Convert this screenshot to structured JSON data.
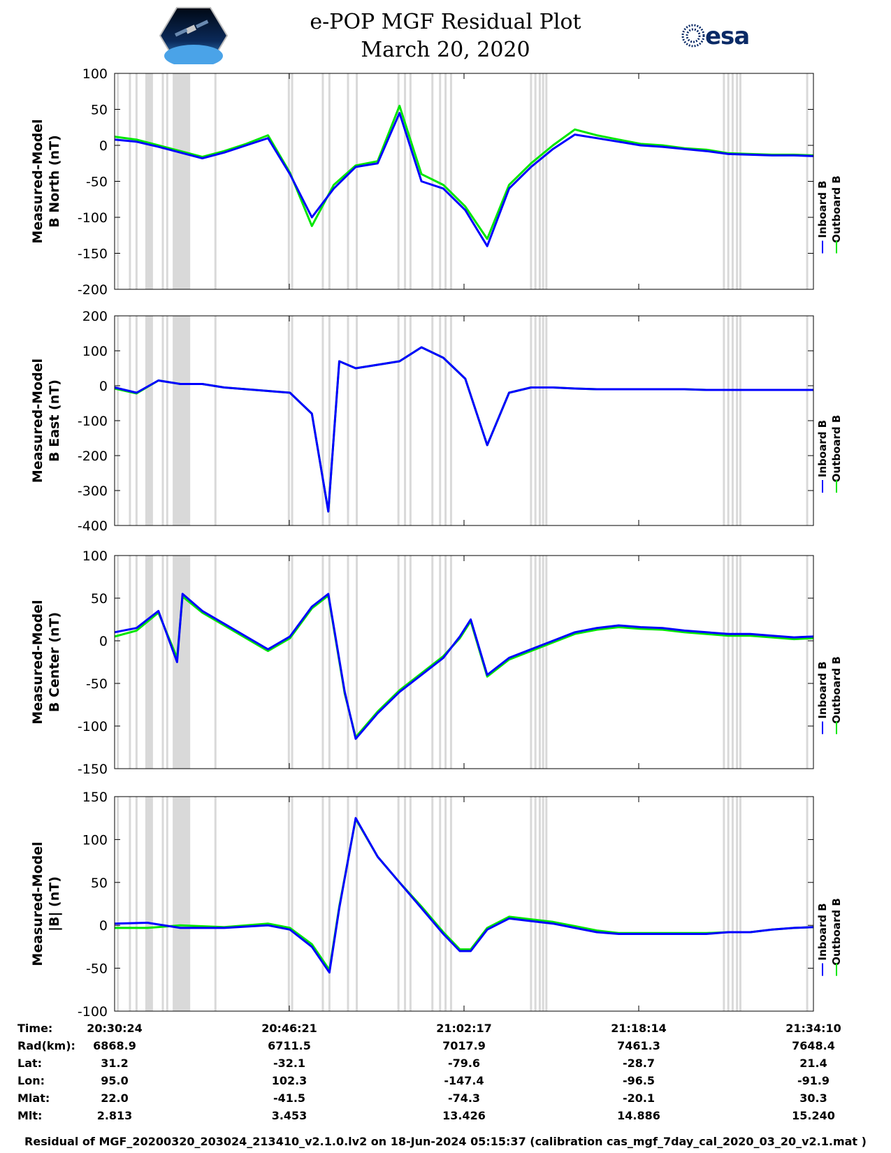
{
  "header": {
    "title": "e-POP MGF Residual Plot",
    "date": "March 20, 2020",
    "left_logo": "cassiope-mission-patch",
    "right_logo": "esa",
    "right_logo_text": "esa"
  },
  "colors": {
    "inboard": "#0000ff",
    "outboard": "#00e600",
    "gap_band": "#d9d9d9"
  },
  "chart_data": [
    {
      "type": "line",
      "panel": "b-north",
      "ylabel_line1": "Measured-Model",
      "ylabel_line2": "B North (nT)",
      "ylim": [
        -200,
        100
      ],
      "yticks": [
        "100",
        "50",
        "0",
        "-50",
        "-100",
        "-150",
        "-200"
      ],
      "legend": [
        "Inboard B",
        "Outboard B"
      ],
      "time_minutes": [
        0,
        2,
        4,
        6,
        8,
        10,
        12,
        14,
        16,
        18,
        20,
        22,
        24,
        26,
        28,
        30,
        32,
        34,
        36,
        38,
        40,
        42,
        44,
        46,
        48,
        50,
        52,
        54,
        56,
        58,
        60,
        62,
        63.77
      ],
      "series": [
        {
          "name": "Inboard B",
          "values": [
            8,
            5,
            -2,
            -10,
            -18,
            -10,
            0,
            10,
            -40,
            -100,
            -60,
            -30,
            -25,
            45,
            -50,
            -60,
            -90,
            -140,
            -60,
            -30,
            -5,
            15,
            10,
            5,
            0,
            -2,
            -5,
            -8,
            -12,
            -13,
            -14,
            -14,
            -15
          ]
        },
        {
          "name": "Outboard B",
          "values": [
            12,
            8,
            0,
            -8,
            -16,
            -8,
            2,
            14,
            -38,
            -112,
            -55,
            -28,
            -22,
            55,
            -40,
            -55,
            -85,
            -130,
            -55,
            -25,
            0,
            22,
            14,
            8,
            2,
            0,
            -4,
            -6,
            -11,
            -12,
            -13,
            -13,
            -14
          ]
        }
      ]
    },
    {
      "type": "line",
      "panel": "b-east",
      "ylabel_line1": "Measured-Model",
      "ylabel_line2": "B East (nT)",
      "ylim": [
        -400,
        200
      ],
      "yticks": [
        "200",
        "100",
        "0",
        "-100",
        "-200",
        "-300",
        "-400"
      ],
      "legend": [
        "Inboard B",
        "Outboard B"
      ],
      "time_minutes": [
        0,
        2,
        4,
        6,
        8,
        10,
        12,
        14,
        16,
        18,
        19.5,
        20.5,
        22,
        24,
        26,
        28,
        30,
        32,
        34,
        36,
        38,
        40,
        42,
        44,
        46,
        48,
        50,
        52,
        54,
        56,
        58,
        60,
        62,
        63.77
      ],
      "series": [
        {
          "name": "Inboard B",
          "values": [
            -5,
            -20,
            15,
            5,
            5,
            -5,
            -10,
            -15,
            -20,
            -80,
            -360,
            70,
            50,
            60,
            70,
            110,
            80,
            20,
            -170,
            -20,
            -5,
            -5,
            -8,
            -10,
            -10,
            -10,
            -10,
            -10,
            -12,
            -12,
            -12,
            -12,
            -12,
            -12
          ]
        },
        {
          "name": "Outboard B",
          "values": [
            -8,
            -22,
            15,
            5,
            5,
            -5,
            -10,
            -15,
            -20,
            -80,
            -360,
            70,
            50,
            60,
            70,
            110,
            80,
            20,
            -170,
            -20,
            -5,
            -5,
            -8,
            -10,
            -10,
            -10,
            -10,
            -10,
            -12,
            -12,
            -12,
            -12,
            -12,
            -12
          ]
        }
      ]
    },
    {
      "type": "line",
      "panel": "b-center",
      "ylabel_line1": "Measured-Model",
      "ylabel_line2": "B Center (nT)",
      "ylim": [
        -150,
        100
      ],
      "yticks": [
        "100",
        "50",
        "0",
        "-50",
        "-100",
        "-150"
      ],
      "legend": [
        "Inboard B",
        "Outboard B"
      ],
      "time_minutes": [
        0,
        2,
        4,
        5.7,
        6.2,
        8,
        10,
        12,
        14,
        16,
        18,
        19.5,
        21,
        22,
        24,
        26,
        28,
        30,
        31.5,
        32.5,
        34,
        36,
        38,
        40,
        42,
        44,
        46,
        48,
        50,
        52,
        54,
        56,
        58,
        60,
        62,
        63.77
      ],
      "series": [
        {
          "name": "Inboard B",
          "values": [
            10,
            15,
            35,
            -25,
            55,
            35,
            20,
            5,
            -10,
            5,
            40,
            55,
            -60,
            -115,
            -85,
            -60,
            -40,
            -20,
            5,
            25,
            -40,
            -20,
            -10,
            0,
            10,
            15,
            18,
            16,
            15,
            12,
            10,
            8,
            8,
            6,
            4,
            5
          ]
        },
        {
          "name": "Outboard B",
          "values": [
            5,
            12,
            33,
            -20,
            52,
            33,
            18,
            3,
            -12,
            3,
            38,
            53,
            -62,
            -113,
            -83,
            -58,
            -38,
            -18,
            3,
            23,
            -42,
            -22,
            -12,
            -2,
            8,
            13,
            16,
            14,
            13,
            10,
            8,
            6,
            6,
            4,
            2,
            3
          ]
        }
      ]
    },
    {
      "type": "line",
      "panel": "b-magnitude",
      "ylabel_line1": "Measured-Model",
      "ylabel_line2": "|B| (nT)",
      "ylim": [
        -100,
        150
      ],
      "yticks": [
        "150",
        "100",
        "50",
        "0",
        "-50",
        "-100"
      ],
      "legend": [
        "Inboard B",
        "Outboard B"
      ],
      "time_minutes": [
        0,
        3,
        6,
        10,
        14,
        16,
        18,
        19.6,
        20.5,
        22,
        24,
        26,
        28,
        30,
        31.5,
        32.5,
        34,
        36,
        38,
        40,
        42,
        44,
        46,
        48,
        50,
        52,
        54,
        56,
        58,
        60,
        62,
        63.77
      ],
      "series": [
        {
          "name": "Inboard B",
          "values": [
            2,
            3,
            -3,
            -3,
            0,
            -5,
            -25,
            -55,
            20,
            125,
            80,
            50,
            20,
            -10,
            -30,
            -30,
            -5,
            8,
            5,
            2,
            -3,
            -8,
            -10,
            -10,
            -10,
            -10,
            -10,
            -8,
            -8,
            -5,
            -3,
            -2
          ]
        },
        {
          "name": "Outboard B",
          "values": [
            -3,
            -3,
            0,
            -2,
            2,
            -3,
            -22,
            -52,
            22,
            124,
            80,
            50,
            22,
            -8,
            -28,
            -28,
            -3,
            10,
            7,
            4,
            -1,
            -6,
            -9,
            -9,
            -9,
            -9,
            -9,
            -8,
            -8,
            -5,
            -3,
            -2
          ]
        }
      ]
    }
  ],
  "gap_bands_minutes": [
    [
      2.8,
      3.5
    ],
    [
      5.3,
      6.9
    ]
  ],
  "gap_lines_minutes": [
    0.3,
    1.4,
    2.0,
    4.4,
    4.8,
    9.2,
    15.9,
    16.2,
    19.0,
    19.6,
    21.3,
    22.1,
    25.9,
    26.5,
    27.0,
    29.0,
    29.7,
    30.2,
    30.7,
    38.0,
    38.4,
    38.8,
    39.1,
    39.4,
    55.6,
    56.0,
    56.4,
    56.8,
    57.1,
    63.2
  ],
  "ephemeris": {
    "labels": [
      "Time:",
      "Rad(km):",
      "Lat:",
      "Lon:",
      "Mlat:",
      "Mlt:"
    ],
    "columns": [
      {
        "time": "20:30:24",
        "rad": "6868.9",
        "lat": "31.2",
        "lon": "95.0",
        "mlat": "22.0",
        "mlt": "2.813"
      },
      {
        "time": "20:46:21",
        "rad": "6711.5",
        "lat": "-32.1",
        "lon": "102.3",
        "mlat": "-41.5",
        "mlt": "3.453"
      },
      {
        "time": "21:02:17",
        "rad": "7017.9",
        "lat": "-79.6",
        "lon": "-147.4",
        "mlat": "-74.3",
        "mlt": "13.426"
      },
      {
        "time": "21:18:14",
        "rad": "7461.3",
        "lat": "-28.7",
        "lon": "-96.5",
        "mlat": "-20.1",
        "mlt": "14.886"
      },
      {
        "time": "21:34:10",
        "rad": "7648.4",
        "lat": "21.4",
        "lon": "-91.9",
        "mlat": "30.3",
        "mlt": "15.240"
      }
    ]
  },
  "footer": "Residual of MGF_20200320_203024_213410_v2.1.0.lv2 on 18-Jun-2024 05:15:37 (calibration cas_mgf_7day_cal_2020_03_20_v2.1.mat )"
}
